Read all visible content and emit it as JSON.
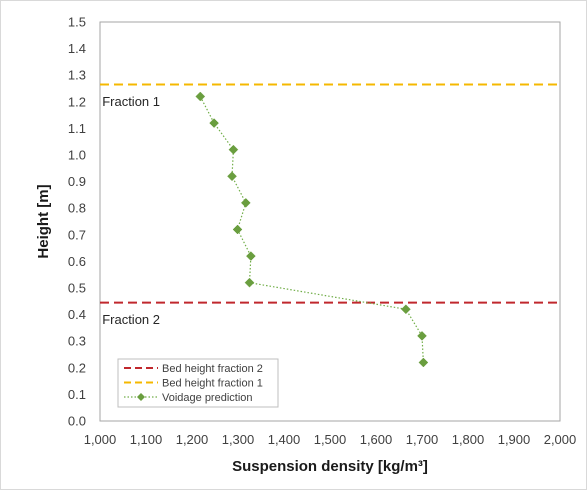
{
  "chart_data": {
    "type": "scatter",
    "xlabel": "Suspension density [kg/m³]",
    "ylabel": "Height [m]",
    "xlim": [
      1000,
      2000
    ],
    "ylim": [
      0.0,
      1.5
    ],
    "x_ticks": [
      "1,000",
      "1,100",
      "1,200",
      "1,300",
      "1,400",
      "1,500",
      "1,600",
      "1,700",
      "1,800",
      "1,900",
      "2,000"
    ],
    "x_tick_values": [
      1000,
      1100,
      1200,
      1300,
      1400,
      1500,
      1600,
      1700,
      1800,
      1900,
      2000
    ],
    "y_ticks": [
      "0.0",
      "0.1",
      "0.2",
      "0.3",
      "0.4",
      "0.5",
      "0.6",
      "0.7",
      "0.8",
      "0.9",
      "1.0",
      "1.1",
      "1.2",
      "1.3",
      "1.4",
      "1.5"
    ],
    "y_tick_values": [
      0.0,
      0.1,
      0.2,
      0.3,
      0.4,
      0.5,
      0.6,
      0.7,
      0.8,
      0.9,
      1.0,
      1.1,
      1.2,
      1.3,
      1.4,
      1.5
    ],
    "grid": false,
    "legend_position": "bottom-left",
    "series": [
      {
        "name": "Bed height fraction 2",
        "kind": "hline",
        "y": 0.445,
        "color": "#c0282d",
        "style": "dashed"
      },
      {
        "name": "Bed height fraction 1",
        "kind": "hline",
        "y": 1.265,
        "color": "#f5b800",
        "style": "dashed"
      },
      {
        "name": "Voidage prediction",
        "kind": "line-markers",
        "color": "#70ad47",
        "marker_color": "#6a9e3f",
        "style": "dotted",
        "x": [
          1218,
          1248,
          1290,
          1287,
          1317,
          1299,
          1328,
          1325,
          1665,
          1700,
          1703
        ],
        "y": [
          1.22,
          1.12,
          1.02,
          0.92,
          0.82,
          0.72,
          0.62,
          0.52,
          0.42,
          0.32,
          0.22
        ]
      }
    ],
    "annotations": [
      {
        "text": "Fraction 1",
        "x": 1020,
        "y": 1.2
      },
      {
        "text": "Fraction 2",
        "x": 1020,
        "y": 0.38
      }
    ]
  }
}
